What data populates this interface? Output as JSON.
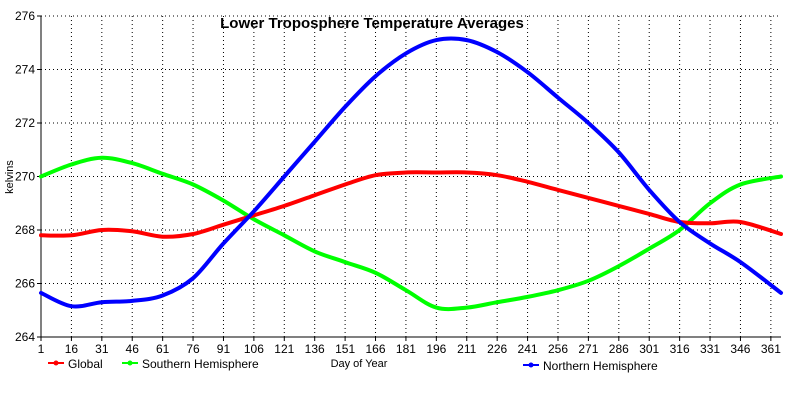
{
  "chart_data": {
    "type": "line",
    "title": "Lower Troposphere Temperature Averages",
    "xlabel": "Day of Year",
    "ylabel": "kelvins",
    "xlim": [
      1,
      366
    ],
    "ylim": [
      264,
      276
    ],
    "x_ticks": [
      1,
      16,
      31,
      46,
      61,
      76,
      91,
      106,
      121,
      136,
      151,
      166,
      181,
      196,
      211,
      226,
      241,
      256,
      271,
      286,
      301,
      316,
      331,
      346,
      361
    ],
    "y_ticks": [
      264,
      266,
      268,
      270,
      272,
      274,
      276
    ],
    "grid": true,
    "legend": [
      "Global",
      "Southern Hemisphere",
      "Northern Hemisphere"
    ],
    "legend_position": "bottom",
    "x": [
      1,
      16,
      31,
      46,
      61,
      76,
      91,
      106,
      121,
      136,
      151,
      166,
      181,
      196,
      211,
      226,
      241,
      256,
      271,
      286,
      301,
      316,
      331,
      346,
      366
    ],
    "series": [
      {
        "name": "Global",
        "color": "#ff0000",
        "values": [
          267.8,
          267.8,
          268.0,
          267.95,
          267.75,
          267.85,
          268.2,
          268.55,
          268.9,
          269.3,
          269.7,
          270.05,
          270.15,
          270.15,
          270.15,
          270.05,
          269.8,
          269.5,
          269.2,
          268.9,
          268.6,
          268.3,
          268.25,
          268.3,
          267.85
        ]
      },
      {
        "name": "Southern Hemisphere",
        "color": "#00ff00",
        "values": [
          270.0,
          270.45,
          270.7,
          270.5,
          270.1,
          269.7,
          269.1,
          268.4,
          267.8,
          267.2,
          266.8,
          266.4,
          265.75,
          265.1,
          265.1,
          265.3,
          265.5,
          265.75,
          266.1,
          266.65,
          267.3,
          268.0,
          269.0,
          269.7,
          270.0
        ]
      },
      {
        "name": "Northern Hemisphere",
        "color": "#0000ff",
        "values": [
          265.65,
          265.15,
          265.3,
          265.35,
          265.55,
          266.2,
          267.5,
          268.7,
          270.0,
          271.3,
          272.6,
          273.75,
          274.6,
          275.1,
          275.1,
          274.65,
          273.9,
          272.95,
          272.0,
          270.9,
          269.5,
          268.3,
          267.5,
          266.8,
          265.65
        ]
      }
    ]
  }
}
